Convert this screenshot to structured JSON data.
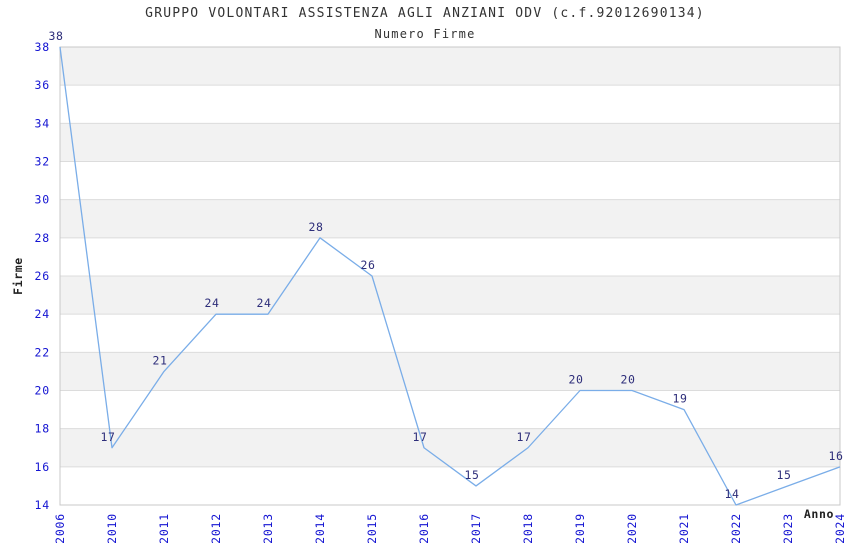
{
  "chart": {
    "title": "GRUPPO VOLONTARI ASSISTENZA AGLI ANZIANI ODV (c.f.92012690134)",
    "subtitle": "Numero Firme"
  },
  "chart_data": {
    "type": "line",
    "title": "GRUPPO VOLONTARI ASSISTENZA AGLI ANZIANI ODV (c.f.92012690134)",
    "subtitle": "Numero Firme",
    "xlabel": "Anno",
    "ylabel": "Firme",
    "categories": [
      "2006",
      "2010",
      "2011",
      "2012",
      "2013",
      "2014",
      "2015",
      "2016",
      "2017",
      "2018",
      "2019",
      "2020",
      "2021",
      "2022",
      "2023",
      "2024"
    ],
    "values": [
      38,
      17,
      21,
      24,
      24,
      28,
      26,
      17,
      15,
      17,
      20,
      20,
      19,
      14,
      15,
      16
    ],
    "ylim": [
      14,
      38
    ],
    "ytick_step": 2,
    "grid": true,
    "legend": false,
    "bands_alternating": true,
    "colors": {
      "line": "#7aade8",
      "tick_label": "#1414d2",
      "data_label": "#2e2e7a",
      "band": "#f2f2f2",
      "gridline": "#dcdcdc",
      "border": "#c8c8c8",
      "axis_title": "#222222",
      "text": "#333333"
    }
  }
}
